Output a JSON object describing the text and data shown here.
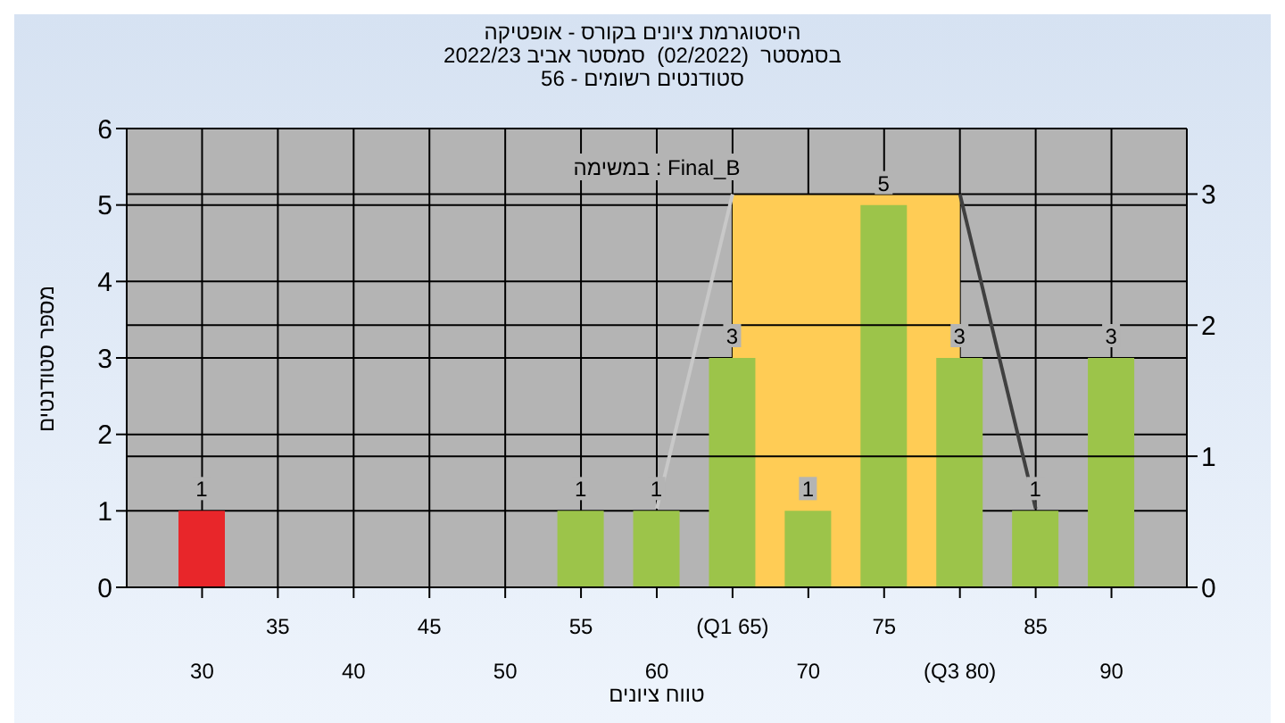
{
  "chart_data": {
    "type": "bar",
    "title": "היסטוגרמת ציונים בקורס - אופטיקה",
    "subtitle": "בסמסטר  (02/2022)  סמסטר אביב 2022/23\nסטודנטים רשומים - 56",
    "xlabel": "טווח ציונים",
    "ylabel": "מספר סטודנטים",
    "annotations": [
      "במשימה : Final_B"
    ],
    "categories": [
      "30",
      "35",
      "40",
      "45",
      "50",
      "55",
      "60",
      "(Q1 65)",
      "70",
      "75",
      "(Q3 80)",
      "85",
      "90"
    ],
    "series": [
      {
        "type": "area",
        "axis": "y2",
        "color": "#ffcc55",
        "values": [
          null,
          null,
          null,
          null,
          null,
          null,
          null,
          3,
          3,
          3,
          3,
          null,
          null
        ]
      },
      {
        "type": "line",
        "axis": "y2",
        "color": "#c8c8c8",
        "values": [
          null,
          null,
          null,
          null,
          null,
          null,
          0.6,
          3,
          null,
          null,
          null,
          null,
          null
        ]
      },
      {
        "type": "line",
        "axis": "y2",
        "color": "#404040",
        "values": [
          null,
          null,
          null,
          null,
          null,
          null,
          null,
          null,
          null,
          null,
          3,
          0.6,
          null
        ]
      },
      {
        "colors": [
          "#e8262a",
          "#9cc44a",
          "#9cc44a",
          "#9cc44a",
          "#9cc44a",
          "#9cc44a",
          "#9cc44a",
          "#9cc44a",
          "#9cc44a",
          "#9cc44a",
          "#9cc44a",
          "#9cc44a",
          "#9cc44a"
        ],
        "values": [
          1,
          0,
          0,
          0,
          0,
          1,
          1,
          3,
          1,
          5,
          3,
          1,
          3
        ],
        "value_labels": [
          "1",
          null,
          null,
          null,
          null,
          "1",
          "1",
          "3",
          "1",
          "5",
          "3",
          "1",
          "3"
        ]
      }
    ],
    "ylim": [
      0,
      6
    ],
    "yticks": [
      0,
      1,
      2,
      3,
      4,
      5,
      6
    ],
    "y2lim": [
      0,
      3.5
    ],
    "y2ticks": [
      0,
      1,
      2,
      3
    ],
    "grid": true
  }
}
